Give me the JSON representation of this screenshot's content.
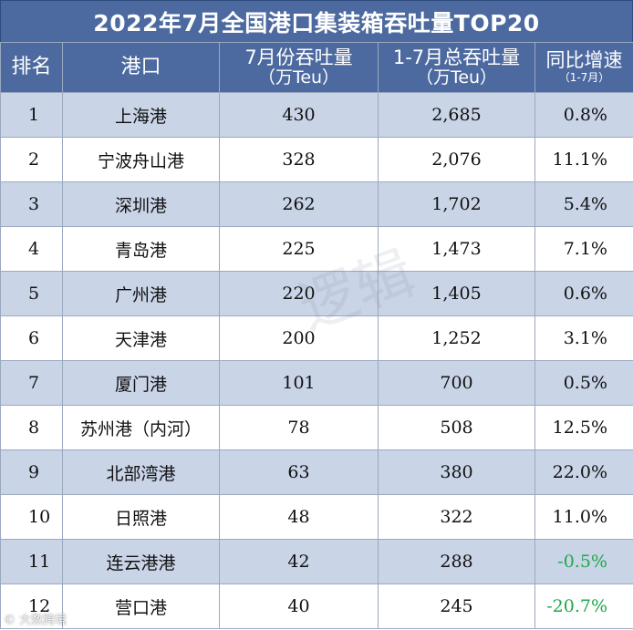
{
  "title": "2022年7月全国港口集装箱吞吐量TOP20",
  "headers": {
    "rank": "排名",
    "port": "港口",
    "july_line1": "7月份吞吐量",
    "july_line2": "（万Teu）",
    "ytd_line1": "1-7月总吞吐量",
    "ytd_line2": "（万Teu）",
    "growth_line1": "同比增速",
    "growth_line2": "（1-7月）"
  },
  "rows": [
    {
      "rank": "1",
      "port": "上海港",
      "july": "430",
      "ytd": "2,685",
      "growth": "0.8%"
    },
    {
      "rank": "2",
      "port": "宁波舟山港",
      "july": "328",
      "ytd": "2,076",
      "growth": "11.1%"
    },
    {
      "rank": "3",
      "port": "深圳港",
      "july": "262",
      "ytd": "1,702",
      "growth": "5.4%"
    },
    {
      "rank": "4",
      "port": "青岛港",
      "july": "225",
      "ytd": "1,473",
      "growth": "7.1%"
    },
    {
      "rank": "5",
      "port": "广州港",
      "july": "220",
      "ytd": "1,405",
      "growth": "0.6%"
    },
    {
      "rank": "6",
      "port": "天津港",
      "july": "200",
      "ytd": "1,252",
      "growth": "3.1%"
    },
    {
      "rank": "7",
      "port": "厦门港",
      "july": "101",
      "ytd": "700",
      "growth": "0.5%"
    },
    {
      "rank": "8",
      "port": "苏州港（内河）",
      "july": "78",
      "ytd": "508",
      "growth": "12.5%"
    },
    {
      "rank": "9",
      "port": "北部湾港",
      "july": "63",
      "ytd": "380",
      "growth": "22.0%"
    },
    {
      "rank": "10",
      "port": "日照港",
      "july": "48",
      "ytd": "322",
      "growth": "11.0%"
    },
    {
      "rank": "11",
      "port": "连云港港",
      "july": "42",
      "ytd": "288",
      "growth": "-0.5%"
    },
    {
      "rank": "12",
      "port": "营口港",
      "july": "40",
      "ytd": "245",
      "growth": "-20.7%"
    }
  ],
  "watermark": "逻辑",
  "credit": "© 大数跨境",
  "colors": {
    "header_bg": "#4d6aa0",
    "row_band": "#c9d4e7",
    "negative": "#1ea84a"
  }
}
